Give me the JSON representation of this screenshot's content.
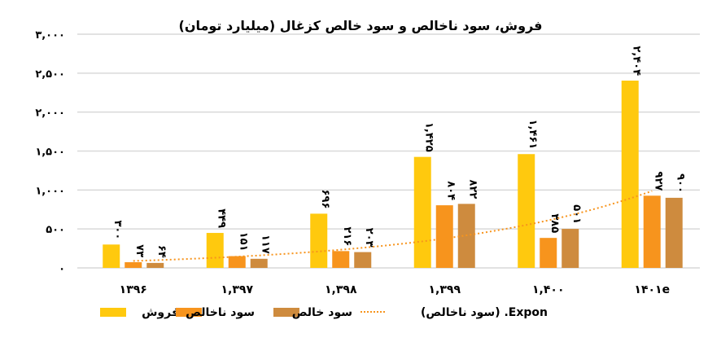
{
  "chart_data": {
    "type": "bar",
    "title": "فروش، سود ناخالص و سود خالص کزغال (میلیارد تومان)",
    "categories": [
      "۱۳۹۶",
      "۱,۳۹۷",
      "۱,۳۹۸",
      "۱,۳۹۹",
      "۱,۴۰۰",
      "۱۴۰۱e"
    ],
    "series": [
      {
        "name": "فروش",
        "color": "#FFC90E",
        "values": [
          300,
          449,
          696,
          1425,
          1461,
          2404
        ],
        "labels": [
          "۳۰۰",
          "۴۴۹",
          "۶۹۶",
          "۱,۴۲۵",
          "۱,۴۶۱",
          "۲,۴۰۴"
        ]
      },
      {
        "name": "سود ناخالص",
        "color": "#F7941D",
        "values": [
          73,
          151,
          216,
          804,
          385,
          927
        ],
        "labels": [
          "۷۳",
          "۱۵۱",
          "۲۱۶",
          "۸۰۴",
          "۳۸۵",
          "۹۲۷"
        ]
      },
      {
        "name": "سود خالص",
        "color": "#CE8B3E",
        "values": [
          64,
          117,
          203,
          822,
          501,
          900
        ],
        "labels": [
          "۶۴",
          "۱۱۷",
          "۲۰۳",
          "۸۲۲",
          "۵۰۱",
          "۹۰۰"
        ]
      }
    ],
    "trendline": {
      "name": "Expon. (سود ناخالص)",
      "type": "exponential",
      "of_series": "سود ناخالص",
      "color": "#F7941D",
      "style": "dotted"
    },
    "ylim": [
      0,
      3000
    ],
    "yticks": [
      0,
      500,
      1000,
      1500,
      2000,
      2500,
      3000
    ],
    "ytick_labels": [
      "۰",
      "۵۰۰",
      "۱,۰۰۰",
      "۱,۵۰۰",
      "۲,۰۰۰",
      "۲,۵۰۰",
      "۳,۰۰۰"
    ],
    "grid": true,
    "legend": "bottom",
    "xlabel": "",
    "ylabel": ""
  }
}
